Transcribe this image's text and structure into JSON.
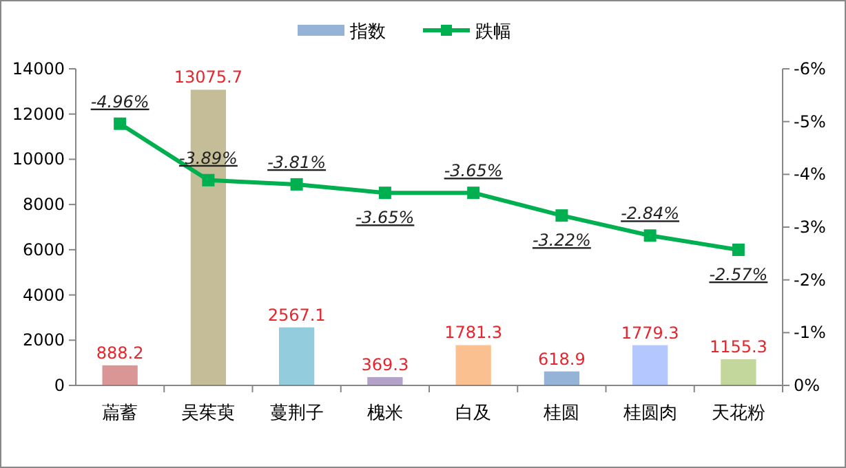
{
  "chart_data": {
    "type": "bar",
    "categories": [
      "萹蓄",
      "吴茱萸",
      "蔓荆子",
      "槐米",
      "白及",
      "桂圆",
      "桂圆肉",
      "天花粉"
    ],
    "series": [
      {
        "name": "指数",
        "color": "#95b3d7",
        "colors": [
          "#d99694",
          "#c4bd97",
          "#93cddd",
          "#b3a2c7",
          "#fac090",
          "#95b3d7",
          "#b4c7ff",
          "#c3d69b"
        ],
        "values": [
          888.2,
          13075.7,
          2567.1,
          369.3,
          1781.3,
          618.9,
          1779.3,
          1155.3
        ],
        "value_labels": [
          "888.2",
          "13075.7",
          "2567.1",
          "369.3",
          "1781.3",
          "618.9",
          "1779.3",
          "1155.3"
        ]
      },
      {
        "name": "跌幅",
        "type": "line",
        "axis": "y2",
        "color": "#00b050",
        "marker": "square",
        "values": [
          -4.96,
          -3.89,
          -3.81,
          -3.65,
          -3.65,
          -3.22,
          -2.84,
          -2.57
        ],
        "value_labels": [
          "-4.96%",
          "-3.89%",
          "-3.81%",
          "-3.65%",
          "-3.65%",
          "-3.22%",
          "-2.84%",
          "-2.57%"
        ]
      }
    ],
    "ylim": [
      0,
      14000
    ],
    "yticks": [
      0,
      2000,
      4000,
      6000,
      8000,
      10000,
      12000,
      14000
    ],
    "y2lim": [
      0,
      -6
    ],
    "y2ticks": [
      {
        "value": 0,
        "label": "0%"
      },
      {
        "value": -1,
        "label": "-1%"
      },
      {
        "value": -2,
        "label": "-2%"
      },
      {
        "value": -3,
        "label": "-3%"
      },
      {
        "value": -4,
        "label": "-4%"
      },
      {
        "value": -5,
        "label": "-5%"
      },
      {
        "value": -6,
        "label": "-6%"
      }
    ],
    "legend": "top",
    "grid": false
  }
}
